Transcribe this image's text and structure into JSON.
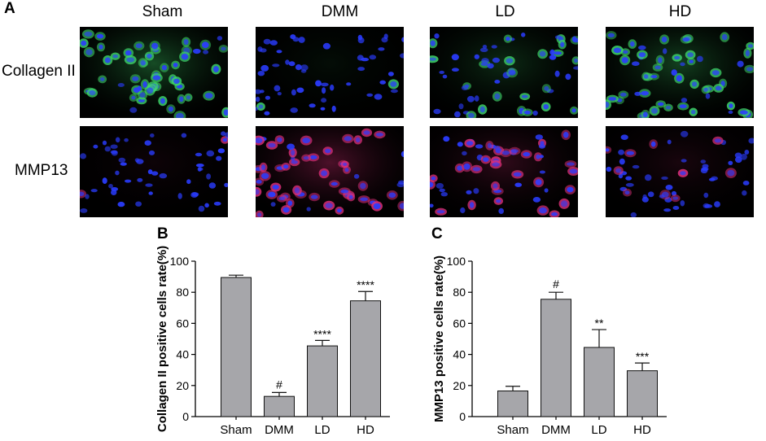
{
  "figure": {
    "panels": [
      "A",
      "B",
      "C"
    ],
    "groups": [
      "Sham",
      "DMM",
      "LD",
      "HD"
    ],
    "rows": [
      "Collagen II",
      "MMP13"
    ],
    "colors": {
      "collagen_stain": "#3fd86a",
      "mmp13_stain": "#e0307a",
      "nuclei": "#2a3cff",
      "bar_fill": "#a6a6aa",
      "background": "#000000"
    }
  },
  "chart_data": [
    {
      "type": "bar",
      "panel": "B",
      "categories": [
        "Sham",
        "DMM",
        "LD",
        "HD"
      ],
      "values": [
        89.5,
        13,
        45.5,
        74.5
      ],
      "errors": [
        1.5,
        2.5,
        3.5,
        6
      ],
      "annotations": [
        "",
        "#",
        "****",
        "****"
      ],
      "title": "",
      "xlabel": "",
      "ylabel": "Collagen II positive cells rate(%)",
      "ylim": [
        0,
        100
      ],
      "yticks": [
        0,
        20,
        40,
        60,
        80,
        100
      ],
      "grid": false,
      "bar_color": "#a6a6aa"
    },
    {
      "type": "bar",
      "panel": "C",
      "categories": [
        "Sham",
        "DMM",
        "LD",
        "HD"
      ],
      "values": [
        16.5,
        75.5,
        44.5,
        29.5
      ],
      "errors": [
        3,
        4.5,
        11.5,
        5
      ],
      "annotations": [
        "",
        "#",
        "**",
        "***"
      ],
      "title": "",
      "xlabel": "",
      "ylabel": "MMP13 positive cells rate(%)",
      "ylim": [
        0,
        100
      ],
      "yticks": [
        0,
        20,
        40,
        60,
        80,
        100
      ],
      "grid": false,
      "bar_color": "#a6a6aa"
    }
  ]
}
